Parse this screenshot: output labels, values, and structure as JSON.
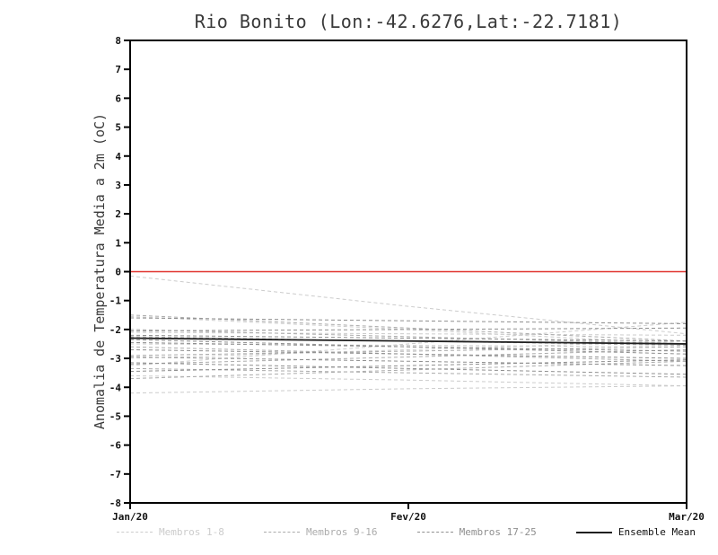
{
  "chart_data": {
    "type": "line",
    "title": "Rio Bonito (Lon:-42.6276,Lat:-22.7181)",
    "ylabel": "Anomalia de Temperatura Media a 2m (oC)",
    "x_categories": [
      "Jan/20",
      "Fev/20",
      "Mar/20"
    ],
    "ylim": [
      -8,
      8
    ],
    "y_ticks": [
      8,
      7,
      6,
      5,
      4,
      3,
      2,
      1,
      0,
      -1,
      -2,
      -3,
      -4,
      -5,
      -6,
      -7,
      -8
    ],
    "grid": "off",
    "legend_position": "bottom",
    "zero_line": {
      "value": 0,
      "color": "#e0352f"
    },
    "groups": [
      {
        "name": "Membros 1-8",
        "color": "#cccccc",
        "dash": true,
        "members": [
          [
            -0.15,
            -1.2,
            -2.15
          ],
          [
            -1.55,
            -2.0,
            -2.5
          ],
          [
            -2.1,
            -2.15,
            -2.2
          ],
          [
            -2.5,
            -2.55,
            -2.6
          ],
          [
            -3.0,
            -2.7,
            -2.4
          ],
          [
            -3.25,
            -2.5,
            -1.75
          ],
          [
            -3.6,
            -3.75,
            -3.95
          ],
          [
            -4.2,
            -4.05,
            -3.95
          ]
        ]
      },
      {
        "name": "Membros 9-16",
        "color": "#ababab",
        "dash": true,
        "members": [
          [
            -1.5,
            -1.95,
            -2.4
          ],
          [
            -2.0,
            -2.25,
            -2.5
          ],
          [
            -2.25,
            -2.4,
            -2.55
          ],
          [
            -2.6,
            -2.85,
            -3.1
          ],
          [
            -2.9,
            -2.75,
            -2.6
          ],
          [
            -3.2,
            -2.95,
            -2.7
          ],
          [
            -3.35,
            -3.5,
            -3.65
          ],
          [
            -3.7,
            -3.4,
            -3.1
          ]
        ]
      },
      {
        "name": "Membros 17-25",
        "color": "#8f8f8f",
        "dash": true,
        "members": [
          [
            -1.6,
            -1.7,
            -1.8
          ],
          [
            -2.05,
            -2.0,
            -1.95
          ],
          [
            -2.2,
            -2.3,
            -2.4
          ],
          [
            -2.45,
            -2.6,
            -2.75
          ],
          [
            -2.7,
            -2.85,
            -3.0
          ],
          [
            -2.95,
            -3.1,
            -3.25
          ],
          [
            -3.15,
            -3.35,
            -3.55
          ],
          [
            -3.45,
            -3.25,
            -3.05
          ],
          [
            -2.35,
            -2.6,
            -2.85
          ]
        ]
      }
    ],
    "ensemble_mean": {
      "name": "Ensemble Mean",
      "color": "#1f1f1f",
      "dash": false,
      "values": [
        -2.3,
        -2.4,
        -2.5
      ]
    }
  }
}
